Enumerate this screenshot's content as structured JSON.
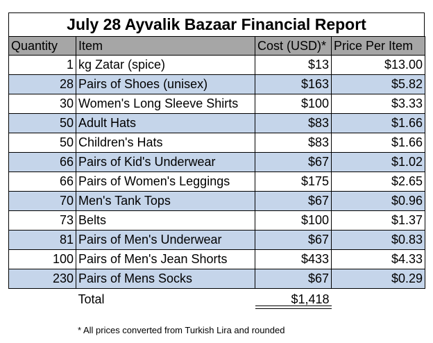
{
  "report": {
    "title": "July 28 Ayvalik Bazaar Financial Report",
    "headers": {
      "quantity": "Quantity",
      "item": "Item",
      "cost": "Cost (USD)*",
      "price": "Price Per Item"
    },
    "rows": [
      {
        "qty": "1",
        "item": "kg Zatar (spice)",
        "cost": "$13",
        "price": "$13.00"
      },
      {
        "qty": "28",
        "item": "Pairs of Shoes (unisex)",
        "cost": "$163",
        "price": "$5.82"
      },
      {
        "qty": "30",
        "item": "Women's Long Sleeve Shirts",
        "cost": "$100",
        "price": "$3.33"
      },
      {
        "qty": "50",
        "item": "Adult Hats",
        "cost": "$83",
        "price": "$1.66"
      },
      {
        "qty": "50",
        "item": "Children's Hats",
        "cost": "$83",
        "price": "$1.66"
      },
      {
        "qty": "66",
        "item": "Pairs of Kid's Underwear",
        "cost": "$67",
        "price": "$1.02"
      },
      {
        "qty": "66",
        "item": "Pairs of Women's Leggings",
        "cost": "$175",
        "price": "$2.65"
      },
      {
        "qty": "70",
        "item": "Men's Tank Tops",
        "cost": "$67",
        "price": "$0.96"
      },
      {
        "qty": "73",
        "item": "Belts",
        "cost": "$100",
        "price": "$1.37"
      },
      {
        "qty": "81",
        "item": "Pairs of Men's Underwear",
        "cost": "$67",
        "price": "$0.83"
      },
      {
        "qty": "100",
        "item": "Pairs of Men's Jean Shorts",
        "cost": "$433",
        "price": "$4.33"
      },
      {
        "qty": "230",
        "item": "Pairs of Mens Socks",
        "cost": "$67",
        "price": "$0.29"
      }
    ],
    "total": {
      "label": "Total",
      "cost": "$1,418"
    },
    "footnote": "* All prices converted from Turkish Lira and rounded",
    "colors": {
      "header_bg": "#a6a6a6",
      "alt_row_bg": "#c5d5ea"
    }
  }
}
